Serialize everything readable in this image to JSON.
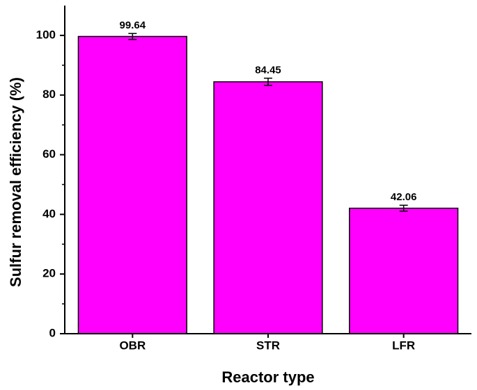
{
  "chart_data": {
    "type": "bar",
    "x_label": "Reactor type",
    "y_label": "Sulfur removal efficiency (%)",
    "categories": [
      "OBR",
      "STR",
      "LFR"
    ],
    "values": [
      99.64,
      84.45,
      42.06
    ],
    "errors": [
      1.0,
      1.2,
      1.0
    ],
    "color": "#ff00ff",
    "ylim": [
      0,
      110
    ],
    "yticks": [
      0,
      20,
      40,
      60,
      80,
      100
    ],
    "minor_yticks": [
      10,
      30,
      50,
      70,
      90
    ],
    "grid": false
  }
}
